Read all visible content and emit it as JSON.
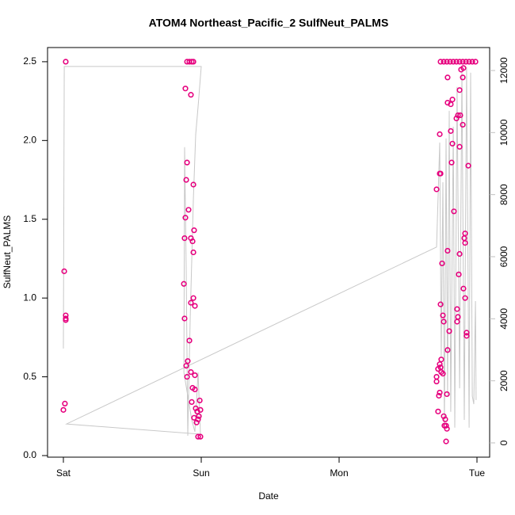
{
  "chart_data": {
    "type": "scatter",
    "title": "ATOM4 Northeast_Pacific_2 SulfNeut_PALMS",
    "x_label": "Date",
    "y_label": "SulfNeut_PALMS",
    "xlim": [
      -0.115,
      3.092
    ],
    "xticks": [
      {
        "value": 0,
        "label": "Sat"
      },
      {
        "value": 1,
        "label": "Sun"
      },
      {
        "value": 2,
        "label": "Mon"
      },
      {
        "value": 3,
        "label": "Tue"
      }
    ],
    "ylim": [
      -0.01,
      2.59
    ],
    "yticks": [
      {
        "value": 0,
        "label": "0.0"
      },
      0.5,
      {
        "value": 1,
        "label": "1.0"
      },
      1.5,
      {
        "value": 2,
        "label": "2.0"
      },
      2.5
    ],
    "y2lim": [
      -460,
      12740
    ],
    "y2ticks": [
      0,
      2000,
      4000,
      6000,
      8000,
      10000,
      12000
    ],
    "y2_color": "#c0c0c0",
    "series": [
      {
        "type": "scatter",
        "color": "#e6007e",
        "x": [
          0.017,
          0.006,
          0.017,
          0.017,
          0.017,
          0.011,
          0,
          0.885,
          0.897,
          0.914,
          0.931,
          0.943,
          0.925,
          0.897,
          0.891,
          0.908,
          0.943,
          0.885,
          0.879,
          0.925,
          0.948,
          0.937,
          0.943,
          0.874,
          0.879,
          0.943,
          0.925,
          0.954,
          0.914,
          0.902,
          0.891,
          0.897,
          0.954,
          0.925,
          0.937,
          0.954,
          0.931,
          0.96,
          0.989,
          0.971,
          0.948,
          0.983,
          0.994,
          0.966,
          0.977,
          0.977,
          0.994,
          2.707,
          2.73,
          2.736,
          2.73,
          2.736,
          2.759,
          2.782,
          2.805,
          2.828,
          2.851,
          2.874,
          2.897,
          2.92,
          2.943,
          2.966,
          2.989,
          2.787,
          2.81,
          2.787,
          2.822,
          2.851,
          2.862,
          2.879,
          2.897,
          2.874,
          2.885,
          2.897,
          2.902,
          2.81,
          2.822,
          2.874,
          2.816,
          2.937,
          2.833,
          2.787,
          2.874,
          2.914,
          2.908,
          2.914,
          2.747,
          2.868,
          2.902,
          2.736,
          2.856,
          2.753,
          2.759,
          2.862,
          2.856,
          2.799,
          2.914,
          2.925,
          2.925,
          2.787,
          2.741,
          2.73,
          2.736,
          2.718,
          2.741,
          2.753,
          2.707,
          2.707,
          2.73,
          2.724,
          2.782,
          2.718,
          2.759,
          2.77,
          2.764,
          2.776,
          2.782,
          2.776
        ],
        "values": [
          2.5,
          1.17,
          0.89,
          0.87,
          0.86,
          0.33,
          0.29,
          2.33,
          2.5,
          2.5,
          2.5,
          2.5,
          2.29,
          1.86,
          1.75,
          1.56,
          1.72,
          1.51,
          1.38,
          1.38,
          1.43,
          1.36,
          1.29,
          1.09,
          0.87,
          1.0,
          0.97,
          0.95,
          0.73,
          0.6,
          0.57,
          0.5,
          0.51,
          0.53,
          0.43,
          0.42,
          0.34,
          0.3,
          0.35,
          0.28,
          0.24,
          0.25,
          0.29,
          0.21,
          0.23,
          0.12,
          0.12,
          1.69,
          1.79,
          1.79,
          2.04,
          2.5,
          2.5,
          2.5,
          2.5,
          2.5,
          2.5,
          2.5,
          2.5,
          2.5,
          2.5,
          2.5,
          2.5,
          2.4,
          2.23,
          2.24,
          2.26,
          2.14,
          2.16,
          2.16,
          2.1,
          2.32,
          2.45,
          2.4,
          2.46,
          2.06,
          1.98,
          1.96,
          1.86,
          1.84,
          1.55,
          1.3,
          1.28,
          1.41,
          1.38,
          1.35,
          1.22,
          1.15,
          1.06,
          0.96,
          0.93,
          0.89,
          0.85,
          0.88,
          0.85,
          0.79,
          1.0,
          0.78,
          0.76,
          0.67,
          0.61,
          0.58,
          0.56,
          0.55,
          0.53,
          0.52,
          0.5,
          0.47,
          0.4,
          0.38,
          0.39,
          0.28,
          0.25,
          0.23,
          0.19,
          0.19,
          0.17,
          0.09
        ]
      },
      {
        "type": "line",
        "axis": "y2",
        "color": "#c8c8c8",
        "x": [
          0,
          0.006,
          1,
          0.977,
          0.96,
          0.943,
          0.92,
          0.902,
          0.891,
          0.879,
          0.874,
          0.931,
          0.954,
          0.977,
          0.994,
          0.023,
          2.707,
          2.718,
          2.73,
          2.741,
          2.753,
          2.764,
          2.776,
          2.787,
          2.799,
          2.81,
          2.828,
          2.839,
          2.856,
          2.874,
          2.891,
          2.908,
          2.925,
          2.943,
          2.954,
          2.966,
          2.977,
          2.989,
          2.994
        ],
        "values": [
          3040,
          12130,
          12130,
          10830,
          9940,
          7890,
          4060,
          230,
          5590,
          9530,
          2270,
          740,
          360,
          2270,
          280,
          610,
          6310,
          7890,
          9680,
          2780,
          8400,
          490,
          9810,
          1510,
          10700,
          1000,
          10190,
          490,
          11470,
          1760,
          11980,
          740,
          12110,
          490,
          11930,
          1510,
          1250,
          4570,
          1380
        ]
      }
    ]
  }
}
